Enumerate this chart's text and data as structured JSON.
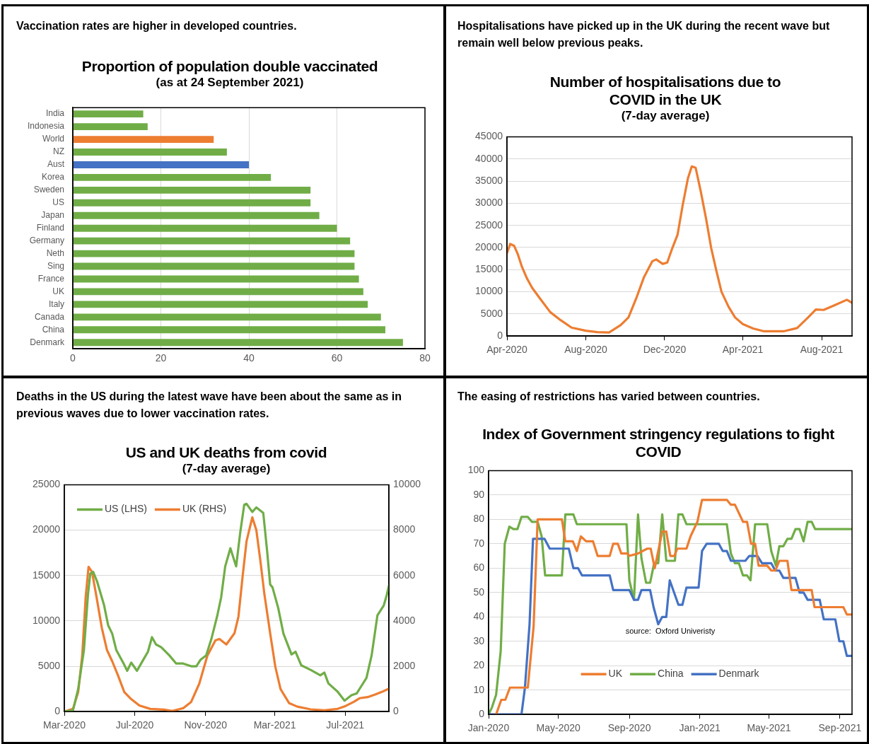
{
  "chart_data": [
    {
      "type": "bar",
      "orientation": "horizontal",
      "title": "Proportion of population double vaccinated",
      "subtitle": "(as at 24 September 2021)",
      "annotations": [
        "Vaccination rates are higher in developed countries."
      ],
      "categories": [
        "India",
        "Indonesia",
        "World",
        "NZ",
        "Aust",
        "Korea",
        "Sweden",
        "US",
        "Japan",
        "Finland",
        "Germany",
        "Neth",
        "Sing",
        "France",
        "UK",
        "Italy",
        "Canada",
        "China",
        "Denmark"
      ],
      "values": [
        16,
        17,
        32,
        35,
        40,
        45,
        54,
        54,
        56,
        60,
        63,
        64,
        64,
        65,
        66,
        67,
        70,
        71,
        75
      ],
      "colors": [
        "#70ad47",
        "#70ad47",
        "#ed7d31",
        "#70ad47",
        "#4472c4",
        "#70ad47",
        "#70ad47",
        "#70ad47",
        "#70ad47",
        "#70ad47",
        "#70ad47",
        "#70ad47",
        "#70ad47",
        "#70ad47",
        "#70ad47",
        "#70ad47",
        "#70ad47",
        "#70ad47",
        "#70ad47"
      ],
      "xlim": [
        0,
        80
      ],
      "xticks": [
        0,
        20,
        40,
        60,
        80
      ],
      "grid": "x"
    },
    {
      "type": "line",
      "title": "Number of hospitalisations due to COVID in the UK",
      "subtitle": "(7-day average)",
      "annotations": [
        "Hospitalisations have picked up in the UK during the recent wave but remain well below previous peaks."
      ],
      "x": [
        "2020-04-01",
        "2020-04-06",
        "2020-04-12",
        "2020-04-18",
        "2020-04-24",
        "2020-05-02",
        "2020-05-10",
        "2020-05-22",
        "2020-06-07",
        "2020-06-23",
        "2020-07-10",
        "2020-08-01",
        "2020-08-19",
        "2020-09-06",
        "2020-09-24",
        "2020-10-06",
        "2020-10-18",
        "2020-10-30",
        "2020-11-12",
        "2020-11-18",
        "2020-11-28",
        "2020-12-05",
        "2020-12-13",
        "2020-12-21",
        "2020-12-29",
        "2021-01-06",
        "2021-01-12",
        "2021-01-18",
        "2021-01-26",
        "2021-02-03",
        "2021-02-11",
        "2021-02-19",
        "2021-02-27",
        "2021-03-10",
        "2021-03-20",
        "2021-04-01",
        "2021-04-17",
        "2021-05-03",
        "2021-06-04",
        "2021-06-24",
        "2021-07-11",
        "2021-07-23",
        "2021-08-04",
        "2021-08-20",
        "2021-09-09",
        "2021-09-17"
      ],
      "series": [
        {
          "color": "#ed7d31",
          "values": [
            18700,
            20800,
            20400,
            18400,
            15700,
            13000,
            10900,
            8500,
            5400,
            3600,
            1900,
            1200,
            900,
            800,
            2500,
            4200,
            8500,
            13300,
            16900,
            17300,
            16300,
            16600,
            19900,
            22900,
            29600,
            35600,
            38300,
            38000,
            32600,
            26600,
            19900,
            14800,
            10000,
            6600,
            4200,
            2700,
            1700,
            1100,
            1100,
            1800,
            4200,
            6000,
            5900,
            6900,
            8200,
            7500
          ]
        }
      ],
      "xlim": [
        "2020-04-01",
        "2021-09-17"
      ],
      "xticks": [
        {
          "value": "2020-04-01",
          "label": "Apr-2020"
        },
        {
          "value": "2020-08-01",
          "label": "Aug-2020"
        },
        {
          "value": "2020-12-01",
          "label": "Dec-2020"
        },
        {
          "value": "2021-04-01",
          "label": "Apr-2021"
        },
        {
          "value": "2021-08-01",
          "label": "Aug-2021"
        }
      ],
      "ylim": [
        0,
        45000
      ],
      "yticks": [
        0,
        5000,
        10000,
        15000,
        20000,
        25000,
        30000,
        35000,
        40000,
        45000
      ],
      "grid": "y"
    },
    {
      "type": "line",
      "title": "US and UK deaths from covid",
      "subtitle": "(7-day average)",
      "annotations": [
        "Deaths in the US during the latest wave have been about the same as in previous waves due to lower vaccination rates."
      ],
      "series": [
        {
          "name": "US (LHS)",
          "color": "#70ad47",
          "x": [
            "2020-03-01",
            "2020-03-16",
            "2020-03-25",
            "2020-04-04",
            "2020-04-11",
            "2020-04-15",
            "2020-04-20",
            "2020-04-27",
            "2020-05-09",
            "2020-05-16",
            "2020-05-23",
            "2020-05-30",
            "2020-06-11",
            "2020-06-18",
            "2020-06-25",
            "2020-07-05",
            "2020-07-14",
            "2020-07-24",
            "2020-07-31",
            "2020-08-07",
            "2020-08-16",
            "2020-08-30",
            "2020-09-11",
            "2020-09-23",
            "2020-10-07",
            "2020-10-16",
            "2020-10-23",
            "2020-11-02",
            "2020-11-11",
            "2020-11-21",
            "2020-11-28",
            "2020-12-05",
            "2020-12-14",
            "2020-12-24",
            "2020-12-31",
            "2021-01-07",
            "2021-01-11",
            "2021-01-21",
            "2021-01-28",
            "2021-02-09",
            "2021-02-16",
            "2021-02-21",
            "2021-02-25",
            "2021-03-07",
            "2021-03-16",
            "2021-03-30",
            "2021-04-06",
            "2021-04-16",
            "2021-05-02",
            "2021-05-19",
            "2021-05-26",
            "2021-06-02",
            "2021-06-18",
            "2021-06-30",
            "2021-07-12",
            "2021-07-21",
            "2021-08-07",
            "2021-08-16",
            "2021-08-26",
            "2021-09-06",
            "2021-09-11",
            "2021-09-15"
          ],
          "values": [
            0,
            150,
            2500,
            6800,
            12900,
            15200,
            15400,
            14300,
            11700,
            9500,
            8600,
            6800,
            5400,
            4500,
            5400,
            4500,
            5500,
            6600,
            8200,
            7400,
            7100,
            6200,
            5300,
            5300,
            5000,
            5000,
            5700,
            6200,
            8000,
            10500,
            12600,
            16000,
            18000,
            16000,
            19700,
            22800,
            22900,
            22000,
            22500,
            21900,
            17500,
            14000,
            13700,
            11400,
            8600,
            6300,
            6600,
            5100,
            4600,
            4000,
            4300,
            3100,
            2200,
            1200,
            1800,
            2000,
            3700,
            6200,
            10600,
            11700,
            12800,
            13900
          ]
        },
        {
          "name": "UK (RHS)",
          "color": "#ed7d31",
          "axis": "y2",
          "x": [
            "2020-03-01",
            "2020-03-16",
            "2020-03-25",
            "2020-04-01",
            "2020-04-07",
            "2020-04-12",
            "2020-04-18",
            "2020-04-25",
            "2020-05-05",
            "2020-05-14",
            "2020-05-23",
            "2020-06-02",
            "2020-06-13",
            "2020-06-25",
            "2020-07-09",
            "2020-07-28",
            "2020-08-21",
            "2020-09-04",
            "2020-09-23",
            "2020-10-07",
            "2020-10-21",
            "2020-11-04",
            "2020-11-18",
            "2020-11-25",
            "2020-12-07",
            "2020-12-21",
            "2020-12-28",
            "2021-01-04",
            "2021-01-11",
            "2021-01-21",
            "2021-01-28",
            "2021-02-04",
            "2021-02-11",
            "2021-02-21",
            "2021-03-02",
            "2021-03-11",
            "2021-03-26",
            "2021-04-09",
            "2021-05-02",
            "2021-05-26",
            "2021-06-18",
            "2021-07-02",
            "2021-07-16",
            "2021-07-26",
            "2021-08-09",
            "2021-08-23",
            "2021-09-02",
            "2021-09-15"
          ],
          "values": [
            0,
            120,
            860,
            2460,
            5050,
            6380,
            6160,
            5170,
            3690,
            2710,
            2220,
            1600,
            860,
            550,
            270,
            120,
            90,
            30,
            150,
            430,
            1230,
            2460,
            3140,
            3200,
            2960,
            3450,
            4190,
            5910,
            7510,
            8560,
            8000,
            6650,
            5170,
            3450,
            1970,
            990,
            370,
            220,
            100,
            60,
            120,
            250,
            430,
            590,
            640,
            760,
            860,
            1010
          ]
        }
      ],
      "xlim": [
        "2020-03-01",
        "2021-09-15"
      ],
      "xticks": [
        {
          "value": "2020-03-01",
          "label": "Mar-2020"
        },
        {
          "value": "2020-07-01",
          "label": "Jul-2020"
        },
        {
          "value": "2020-11-01",
          "label": "Nov-2020"
        },
        {
          "value": "2021-03-01",
          "label": "Mar-2021"
        },
        {
          "value": "2021-07-01",
          "label": "Jul-2021"
        }
      ],
      "ylim": [
        0,
        25000
      ],
      "yticks": [
        0,
        5000,
        10000,
        15000,
        20000,
        25000
      ],
      "y2lim": [
        0,
        10000
      ],
      "y2ticks": [
        0,
        2000,
        4000,
        6000,
        8000,
        10000
      ],
      "grid": "y",
      "legend": "top left"
    },
    {
      "type": "line",
      "title": "Index of Government stringency regulations to fight COVID",
      "annotations": [
        "The easing of restrictions has varied between countries.",
        "source:  Oxford Univeristy"
      ],
      "series": [
        {
          "name": "UK",
          "color": "#ed7d31",
          "x": [
            "2020-01-14",
            "2020-01-23",
            "2020-01-30",
            "2020-02-07",
            "2020-03-09",
            "2020-03-19",
            "2020-03-26",
            "2020-05-07",
            "2020-05-13",
            "2020-05-26",
            "2020-06-02",
            "2020-06-09",
            "2020-06-18",
            "2020-06-30",
            "2020-07-08",
            "2020-07-29",
            "2020-08-04",
            "2020-08-12",
            "2020-08-18",
            "2020-08-29",
            "2020-09-01",
            "2020-09-16",
            "2020-10-02",
            "2020-10-08",
            "2020-10-15",
            "2020-10-28",
            "2020-11-04",
            "2020-11-11",
            "2020-11-18",
            "2020-11-23",
            "2020-12-09",
            "2020-12-16",
            "2020-12-28",
            "2021-01-05",
            "2021-02-17",
            "2021-02-24",
            "2021-03-03",
            "2021-03-17",
            "2021-03-24",
            "2021-03-31",
            "2021-04-07",
            "2021-04-13",
            "2021-04-28",
            "2021-05-05",
            "2021-05-12",
            "2021-05-19",
            "2021-06-02",
            "2021-06-09",
            "2021-07-14",
            "2021-07-19",
            "2021-09-07",
            "2021-09-13",
            "2021-09-22"
          ],
          "values": [
            0,
            6,
            6,
            11,
            11,
            36,
            80,
            80,
            71,
            71,
            67,
            73,
            71,
            71,
            65,
            65,
            70,
            70,
            66,
            66,
            65,
            66,
            68,
            68,
            60,
            75,
            75,
            65,
            65,
            68,
            68,
            73,
            79,
            88,
            88,
            86,
            86,
            79,
            79,
            70,
            70,
            61,
            61,
            59,
            59,
            63,
            63,
            51,
            51,
            44,
            44,
            41,
            41
          ]
        },
        {
          "name": "China",
          "color": "#70ad47",
          "x": [
            "2020-01-01",
            "2020-01-07",
            "2020-01-14",
            "2020-01-22",
            "2020-01-29",
            "2020-02-06",
            "2020-02-13",
            "2020-02-20",
            "2020-02-27",
            "2020-03-09",
            "2020-03-16",
            "2020-03-26",
            "2020-04-02",
            "2020-04-08",
            "2020-05-07",
            "2020-05-13",
            "2020-05-27",
            "2020-06-02",
            "2020-08-27",
            "2020-09-01",
            "2020-09-09",
            "2020-09-16",
            "2020-09-22",
            "2020-09-30",
            "2020-10-07",
            "2020-10-14",
            "2020-10-21",
            "2020-10-28",
            "2020-11-04",
            "2020-11-19",
            "2020-11-25",
            "2020-12-02",
            "2020-12-09",
            "2021-02-17",
            "2021-02-24",
            "2021-03-03",
            "2021-03-10",
            "2021-03-17",
            "2021-03-24",
            "2021-03-30",
            "2021-04-07",
            "2021-04-28",
            "2021-05-05",
            "2021-05-13",
            "2021-05-19",
            "2021-05-26",
            "2021-06-02",
            "2021-06-09",
            "2021-06-16",
            "2021-06-23",
            "2021-06-30",
            "2021-07-07",
            "2021-07-14",
            "2021-07-20",
            "2021-09-22"
          ],
          "values": [
            0,
            3,
            8,
            26,
            70,
            77,
            76,
            76,
            81,
            81,
            79,
            79,
            73,
            57,
            57,
            82,
            82,
            78,
            78,
            55,
            47,
            82,
            64,
            54,
            54,
            62,
            62,
            82,
            63,
            63,
            82,
            82,
            78,
            78,
            66,
            62,
            62,
            57,
            57,
            55,
            78,
            78,
            67,
            61,
            69,
            69,
            72,
            72,
            76,
            76,
            71,
            79,
            79,
            76,
            76
          ]
        },
        {
          "name": "Denmark",
          "color": "#4472c4",
          "x": [
            "2020-01-01",
            "2020-02-27",
            "2020-03-04",
            "2020-03-12",
            "2020-03-18",
            "2020-04-07",
            "2020-04-16",
            "2020-05-19",
            "2020-05-27",
            "2020-06-04",
            "2020-06-11",
            "2020-07-29",
            "2020-08-04",
            "2020-09-01",
            "2020-09-09",
            "2020-09-16",
            "2020-09-22",
            "2020-10-07",
            "2020-10-13",
            "2020-10-21",
            "2020-10-28",
            "2020-11-04",
            "2020-11-10",
            "2020-11-25",
            "2020-12-02",
            "2020-12-09",
            "2020-12-30",
            "2021-01-05",
            "2021-01-13",
            "2021-02-03",
            "2021-02-10",
            "2021-02-17",
            "2021-02-24",
            "2021-03-21",
            "2021-03-28",
            "2021-04-11",
            "2021-04-19",
            "2021-05-05",
            "2021-05-12",
            "2021-05-19",
            "2021-05-26",
            "2021-06-16",
            "2021-06-23",
            "2021-06-30",
            "2021-07-07",
            "2021-07-28",
            "2021-08-04",
            "2021-08-24",
            "2021-08-31",
            "2021-09-07",
            "2021-09-13",
            "2021-09-22"
          ],
          "values": [
            0,
            0,
            11,
            37,
            72,
            72,
            68,
            68,
            60,
            60,
            57,
            57,
            51,
            51,
            47,
            47,
            51,
            51,
            44,
            37,
            40,
            40,
            55,
            45,
            45,
            52,
            52,
            67,
            70,
            70,
            67,
            67,
            63,
            63,
            65,
            65,
            62,
            62,
            59,
            59,
            56,
            56,
            50,
            50,
            47,
            47,
            39,
            39,
            30,
            30,
            24,
            24
          ]
        }
      ],
      "xlim": [
        "2020-01-01",
        "2021-09-22"
      ],
      "xticks": [
        {
          "value": "2020-01-01",
          "label": "Jan-2020"
        },
        {
          "value": "2020-05-01",
          "label": "May-2020"
        },
        {
          "value": "2020-09-01",
          "label": "Sep-2020"
        },
        {
          "value": "2021-01-01",
          "label": "Jan-2021"
        },
        {
          "value": "2021-05-01",
          "label": "May-2021"
        },
        {
          "value": "2021-09-01",
          "label": "Sep-2021"
        }
      ],
      "ylim": [
        0,
        100
      ],
      "yticks": [
        0,
        10,
        20,
        30,
        40,
        50,
        60,
        70,
        80,
        90,
        100
      ],
      "grid": "y",
      "legend": "bottom"
    }
  ]
}
